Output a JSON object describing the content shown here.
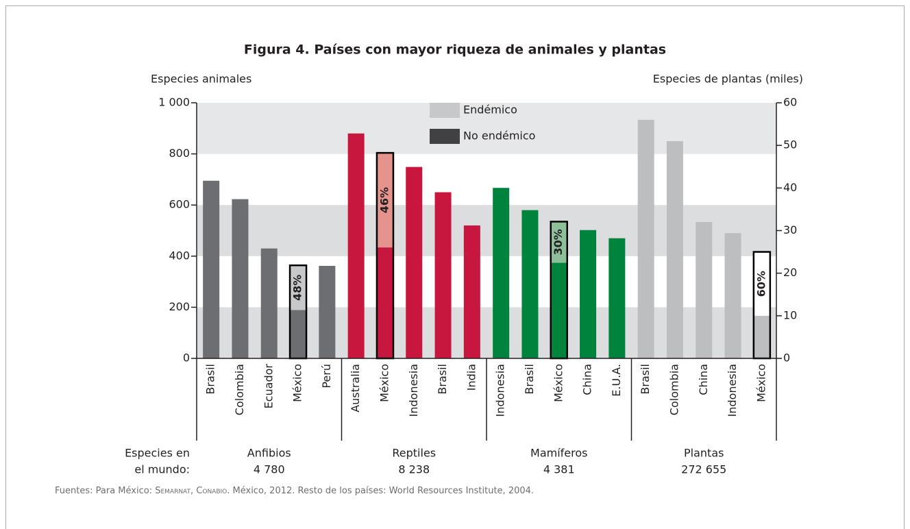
{
  "chart_data": {
    "type": "bar",
    "title": "Figura 4. Países con mayor riqueza de animales y plantas",
    "y_label": "Especies animales",
    "y2_label": "Especies de plantas (miles)",
    "ylim": [
      0,
      1000
    ],
    "yticks": [
      0,
      200,
      400,
      600,
      800,
      {
        "value": 1000,
        "label": "1 000"
      }
    ],
    "y2lim": [
      0,
      60
    ],
    "y2ticks": [
      0,
      10,
      20,
      30,
      40,
      50,
      60
    ],
    "bands": true,
    "legend": [
      {
        "name": "Endémico",
        "color": "#c7c8ca"
      },
      {
        "name": "No endémico",
        "color": "#414042"
      }
    ],
    "world_label": [
      "Especies en",
      "el mundo:"
    ],
    "groups": [
      {
        "name": "Anfibios",
        "world_species": 4780,
        "world_species_label": "4 780",
        "color": "#6d6e71",
        "endemic_color": "#c7c8ca",
        "categories": [
          "Brasil",
          "Colombia",
          "Ecuador",
          "México",
          "Perú"
        ],
        "values": [
          695,
          623,
          430,
          364,
          362
        ],
        "highlight": 3,
        "endemic_pct": 48,
        "endemic_pct_label": "48%"
      },
      {
        "name": "Reptiles",
        "world_species": 8238,
        "world_species_label": "8 238",
        "color": "#c8173f",
        "endemic_color": "#e4938d",
        "categories": [
          "Australia",
          "México",
          "Indonesia",
          "Brasil",
          "India"
        ],
        "values": [
          880,
          804,
          749,
          650,
          520
        ],
        "highlight": 1,
        "endemic_pct": 46,
        "endemic_pct_label": "46%"
      },
      {
        "name": "Mamíferos",
        "world_species": 4381,
        "world_species_label": "4 381",
        "color": "#00843d",
        "endemic_color": "#8dbf99",
        "categories": [
          "Indonesia",
          "Brasil",
          "México",
          "China",
          "E.U.A."
        ],
        "values": [
          667,
          580,
          535,
          502,
          470
        ],
        "highlight": 2,
        "endemic_pct": 30,
        "endemic_pct_label": "30%"
      },
      {
        "name": "Plantas",
        "world_species": 272655,
        "world_species_label": "272 655",
        "axis": "y2",
        "color": "#bcbec0",
        "endemic_color": "#ffffff",
        "categories": [
          "Brasil",
          "Colombia",
          "China",
          "Indonesia",
          "México"
        ],
        "values": [
          56,
          51,
          32,
          29.4,
          25
        ],
        "highlight": 4,
        "endemic_pct": 60,
        "endemic_pct_label": "60%"
      }
    ],
    "source": [
      "Fuentes: Para México: ",
      "Semarnat",
      ", ",
      "Conabio",
      ". México, 2012. Resto de los países: World Resources Institute, 2004."
    ]
  }
}
